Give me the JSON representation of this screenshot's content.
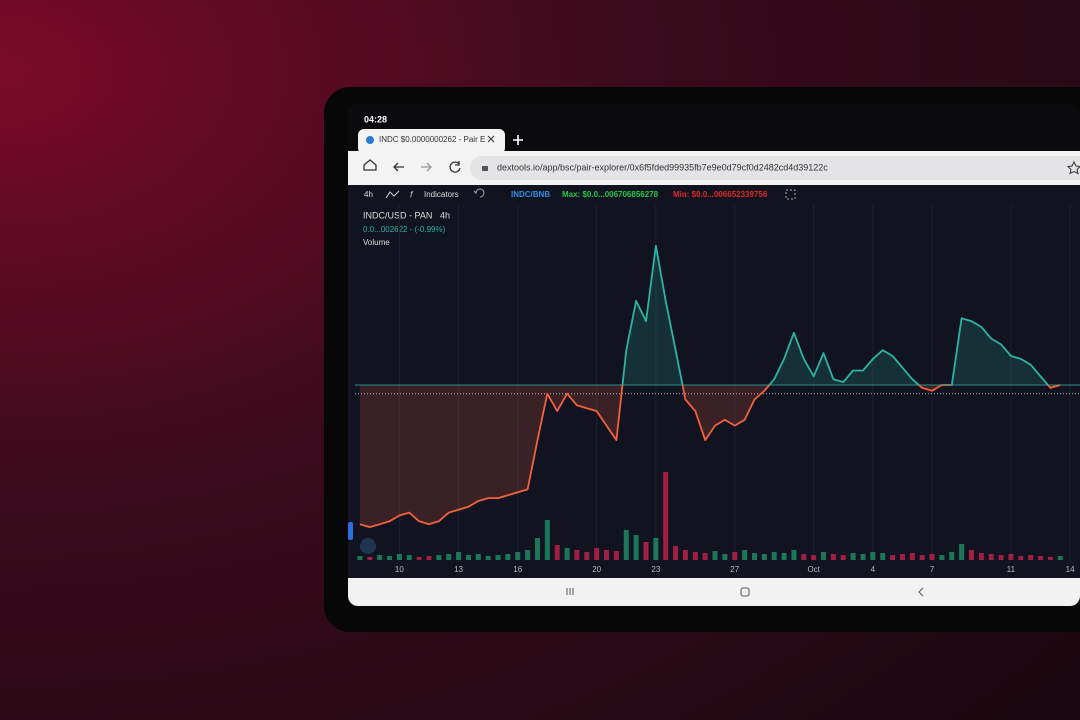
{
  "status_bar": {
    "time": "04:28"
  },
  "browser": {
    "tab_title": "INDC $0.0000000262 - Pair E",
    "url": "dextools.io/app/bsc/pair-explorer/0x6f5fded99935fb7e9e0d79cf0d2482cd4d39122c"
  },
  "toolbar": {
    "interval": "4h",
    "indicators": "Indicators",
    "pair": "INDC/BNB",
    "max": "Max: $0.0...006706856278",
    "min": "Min: $0.0...006652339756"
  },
  "chart_data": {
    "type": "line",
    "title": "INDC/USD - PAN",
    "interval": "4h",
    "subtitle": "0.0...002622 - (-0.99%)",
    "volume_label": "Volume",
    "x": [
      8,
      8.5,
      9,
      9.5,
      10,
      10.5,
      11,
      11.5,
      12,
      12.5,
      13,
      13.5,
      14,
      14.5,
      15,
      15.5,
      16,
      16.5,
      17,
      17.5,
      18,
      18.5,
      19,
      19.5,
      20,
      20.5,
      21,
      21.5,
      22,
      22.5,
      23,
      23.5,
      24,
      24.5,
      25,
      25.5,
      26,
      26.5,
      27,
      27.5,
      28,
      28.5,
      29,
      29.5,
      30,
      30.5,
      31,
      31.5,
      32,
      32.5,
      33,
      33.5,
      34,
      34.5,
      35,
      35.5,
      36,
      36.5,
      37,
      37.5,
      38,
      38.5,
      39,
      39.5,
      40,
      40.5,
      41,
      41.5,
      42,
      42.5,
      43,
      43.5
    ],
    "values": [
      2,
      1,
      2,
      3,
      5,
      6,
      3,
      2,
      3,
      6,
      7,
      8,
      10,
      11,
      11,
      12,
      13,
      14,
      31,
      47,
      41,
      47,
      43,
      42,
      41,
      36,
      31,
      62,
      79,
      72,
      98,
      79,
      62,
      45,
      41,
      31,
      36,
      38,
      36,
      38,
      45,
      48,
      52,
      59,
      68,
      59,
      53,
      61,
      52,
      51,
      55,
      55,
      59,
      62,
      60,
      56,
      52,
      49,
      48,
      50,
      50,
      73,
      72,
      70,
      66,
      64,
      60,
      59,
      57,
      53,
      49,
      50
    ],
    "volumes": [
      4,
      3,
      5,
      4,
      6,
      5,
      3,
      4,
      5,
      6,
      8,
      5,
      6,
      4,
      5,
      6,
      8,
      10,
      22,
      40,
      15,
      12,
      10,
      8,
      12,
      10,
      9,
      30,
      25,
      18,
      22,
      88,
      14,
      10,
      8,
      7,
      9,
      6,
      8,
      10,
      7,
      6,
      8,
      7,
      10,
      6,
      5,
      8,
      6,
      5,
      7,
      6,
      8,
      7,
      5,
      6,
      7,
      5,
      6,
      5,
      8,
      16,
      10,
      7,
      6,
      5,
      6,
      4,
      5,
      4,
      3,
      4
    ],
    "baseline": 50,
    "last_price": 47,
    "up_color": "#2bb3a3",
    "down_color": "#f2603c",
    "xlim": [
      7.75,
      44.5
    ],
    "ylim": [
      0,
      100
    ],
    "volume_lim": [
      0,
      100
    ],
    "xticks": [
      10,
      13,
      16,
      20,
      23,
      27,
      {
        "value": 31,
        "label": "Oct"
      },
      {
        "value": 34,
        "label": "4"
      },
      {
        "value": 37,
        "label": "7"
      },
      {
        "value": 41,
        "label": "11"
      },
      {
        "value": 44,
        "label": "14"
      }
    ]
  }
}
